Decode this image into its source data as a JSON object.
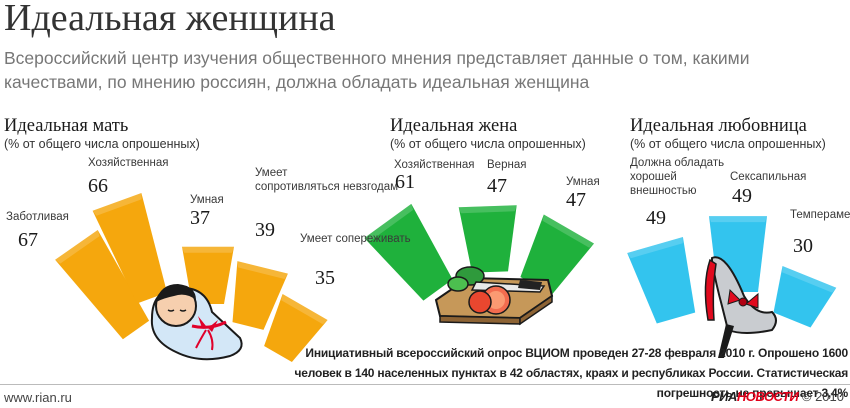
{
  "title": "Идеальная женщина",
  "subtitle": "Всероссийский центр изучения общественного мнения представляет данные о том, какими качествами, по мнению россиян, должна обладать идеальная женщина",
  "colors": {
    "mother": "#f5a70d",
    "wife": "#1fb13c",
    "lover": "#33c4ee"
  },
  "chart_data": [
    {
      "type": "bar",
      "title": "Идеальная мать",
      "ylabel": "(% от общего числа опрошенных)",
      "categories": [
        "Заботливая",
        "Хозяйственная",
        "Умная",
        "Умеет сопротивляться невзгодам",
        "Умеет сопереживать"
      ],
      "values": [
        67,
        66,
        37,
        39,
        35
      ]
    },
    {
      "type": "bar",
      "title": "Идеальная жена",
      "ylabel": "(% от общего числа опрошенных)",
      "categories": [
        "Хозяйственная",
        "Верная",
        "Умная"
      ],
      "values": [
        61,
        47,
        47
      ]
    },
    {
      "type": "bar",
      "title": "Идеальная любовница",
      "ylabel": "(% от общего числа опрошенных)",
      "categories": [
        "Должна обладать хорошей внешностью",
        "Сексапильная",
        "Темпераментная"
      ],
      "values": [
        49,
        49,
        30
      ]
    }
  ],
  "footnote": "Инициативный всероссийский опрос ВЦИОМ проведен 27-28 февраля 2010 г. Опрошено 1600 человек в 140 населенных пунктах в 42 областях, краях и республиках России. Статистическая погрешность не превышает 3,4%",
  "footer": {
    "site": "www.rian.ru",
    "brand_a": "РИА",
    "brand_b": "НОВОСТИ",
    "copyright": "© 2010"
  }
}
